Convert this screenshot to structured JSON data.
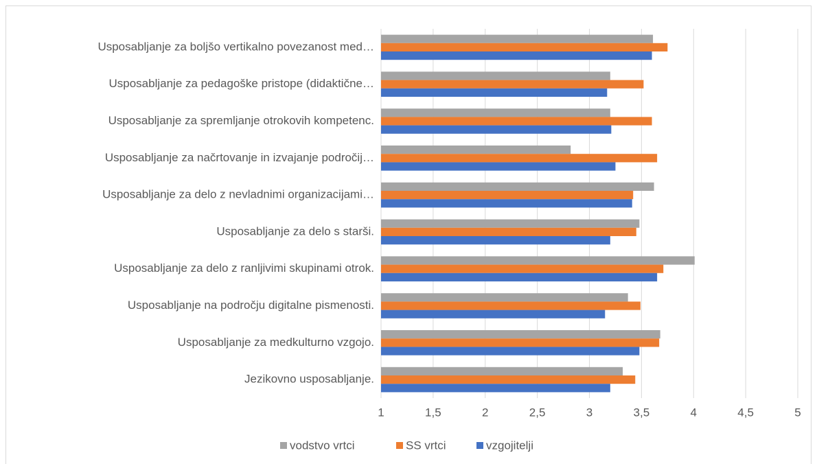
{
  "chart_data": {
    "type": "bar",
    "orientation": "horizontal",
    "categories": [
      "Usposabljanje za boljšo vertikalno povezanost med…",
      "Usposabljanje za pedagoške pristope (didaktične…",
      "Usposabljanje za spremljanje otrokovih kompetenc.",
      "Usposabljanje za načrtovanje in izvajanje področij…",
      "Usposabljanje za delo z nevladnimi organizacijami…",
      "Usposabljanje za delo s starši.",
      "Usposabljanje za delo z ranljivimi skupinami otrok.",
      "Usposabljanje na področju digitalne pismenosti.",
      "Usposabljanje za medkulturno vzgojo.",
      "Jezikovno usposabljanje."
    ],
    "series": [
      {
        "name": "vodstvo vrtci",
        "color": "#a5a5a5",
        "values": [
          3.61,
          3.2,
          3.2,
          2.82,
          3.62,
          3.48,
          4.01,
          3.37,
          3.68,
          3.32
        ]
      },
      {
        "name": "SS vrtci",
        "color": "#ed7d31",
        "values": [
          3.75,
          3.52,
          3.6,
          3.65,
          3.42,
          3.45,
          3.71,
          3.49,
          3.67,
          3.44
        ]
      },
      {
        "name": "vzgojitelji",
        "color": "#4472c4",
        "values": [
          3.6,
          3.17,
          3.21,
          3.25,
          3.41,
          3.2,
          3.65,
          3.15,
          3.48,
          3.2
        ]
      }
    ],
    "xlim": [
      1,
      5
    ],
    "xticks": [
      1,
      {
        "value": 1.5,
        "label": "1,5"
      },
      2,
      {
        "value": 2.5,
        "label": "2,5"
      },
      3,
      {
        "value": 3.5,
        "label": "3,5"
      },
      4,
      {
        "value": 4.5,
        "label": "4,5"
      },
      5
    ],
    "grid": true,
    "legend": "bottom"
  }
}
